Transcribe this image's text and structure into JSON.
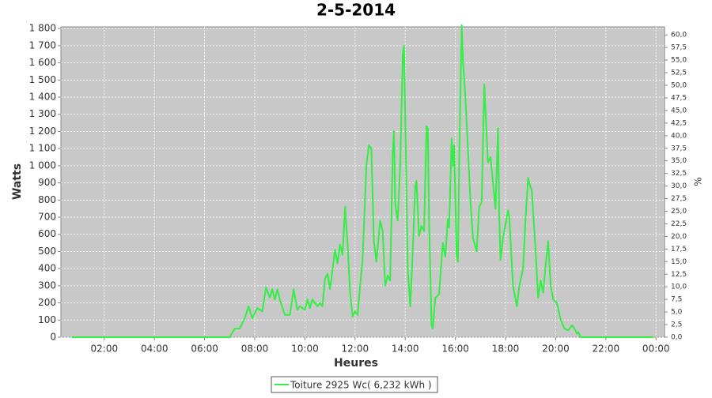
{
  "chart_data": {
    "type": "line",
    "title": "2-5-2014",
    "xlabel": "Heures",
    "ylabel": "Watts",
    "y2label": "%",
    "x": [
      0.7,
      6.0,
      7.0,
      7.2,
      7.4,
      7.6,
      7.75,
      7.9,
      8.1,
      8.3,
      8.45,
      8.6,
      8.7,
      8.8,
      8.9,
      9.0,
      9.2,
      9.4,
      9.55,
      9.7,
      9.8,
      10.0,
      10.1,
      10.2,
      10.3,
      10.5,
      10.6,
      10.7,
      10.8,
      10.9,
      11.0,
      11.2,
      11.3,
      11.4,
      11.5,
      11.6,
      11.7,
      11.8,
      11.9,
      12.0,
      12.1,
      12.2,
      12.3,
      12.45,
      12.55,
      12.65,
      12.75,
      12.85,
      13.0,
      13.1,
      13.2,
      13.3,
      13.4,
      13.5,
      13.55,
      13.6,
      13.7,
      13.8,
      13.9,
      13.95,
      14.0,
      14.1,
      14.2,
      14.3,
      14.4,
      14.45,
      14.55,
      14.65,
      14.75,
      14.85,
      14.9,
      14.95,
      15.05,
      15.1,
      15.2,
      15.35,
      15.5,
      15.6,
      15.7,
      15.75,
      15.85,
      15.9,
      15.95,
      16.0,
      16.05,
      16.1,
      16.15,
      16.25,
      16.3,
      16.4,
      16.6,
      16.7,
      16.85,
      16.95,
      17.05,
      17.15,
      17.3,
      17.4,
      17.5,
      17.6,
      17.7,
      17.75,
      17.8,
      17.9,
      18.0,
      18.1,
      18.15,
      18.3,
      18.45,
      18.55,
      18.7,
      18.8,
      18.9,
      18.95,
      19.05,
      19.2,
      19.3,
      19.4,
      19.5,
      19.6,
      19.7,
      19.8,
      19.9,
      20.05,
      20.2,
      20.35,
      20.5,
      20.65,
      20.75,
      20.85,
      20.9,
      21.0,
      23.9
    ],
    "series": [
      {
        "name": "Toiture 2925 Wc( 6,232 kWh )",
        "color": "#33ee44",
        "values": [
          0,
          0,
          0,
          50,
          50,
          110,
          180,
          110,
          170,
          150,
          290,
          230,
          280,
          220,
          280,
          220,
          130,
          130,
          280,
          160,
          180,
          160,
          220,
          170,
          220,
          180,
          200,
          180,
          340,
          370,
          280,
          510,
          430,
          540,
          480,
          760,
          550,
          260,
          120,
          150,
          130,
          300,
          450,
          1000,
          1120,
          1100,
          560,
          440,
          680,
          620,
          300,
          360,
          330,
          1070,
          1200,
          780,
          680,
          1000,
          1650,
          1700,
          1300,
          400,
          180,
          500,
          880,
          910,
          590,
          650,
          620,
          1230,
          1220,
          700,
          70,
          50,
          230,
          250,
          550,
          470,
          690,
          640,
          1160,
          1000,
          1120,
          800,
          480,
          440,
          1000,
          1820,
          1620,
          1400,
          800,
          580,
          500,
          760,
          790,
          1475,
          1020,
          1050,
          900,
          750,
          1220,
          700,
          450,
          580,
          660,
          740,
          700,
          300,
          180,
          300,
          400,
          700,
          930,
          900,
          850,
          500,
          230,
          330,
          260,
          420,
          560,
          300,
          220,
          200,
          100,
          50,
          40,
          70,
          50,
          20,
          30,
          0,
          0
        ]
      }
    ],
    "xlim": [
      0.27,
      24.34
    ],
    "xticks": [
      {
        "value": 2,
        "label": "02:00"
      },
      {
        "value": 4,
        "label": "04:00"
      },
      {
        "value": 6,
        "label": "06:00"
      },
      {
        "value": 8,
        "label": "08:00"
      },
      {
        "value": 10,
        "label": "10:00"
      },
      {
        "value": 12,
        "label": "12:00"
      },
      {
        "value": 14,
        "label": "14:00"
      },
      {
        "value": 16,
        "label": "16:00"
      },
      {
        "value": 18,
        "label": "18:00"
      },
      {
        "value": 20,
        "label": "20:00"
      },
      {
        "value": 22,
        "label": "22:00"
      },
      {
        "value": 24,
        "label": "00:00"
      }
    ],
    "ylim": [
      0,
      1810
    ],
    "yticks": [
      0,
      100,
      200,
      300,
      400,
      500,
      600,
      700,
      800,
      900,
      {
        "value": 1000,
        "label": "1 000"
      },
      {
        "value": 1100,
        "label": "1 100"
      },
      {
        "value": 1200,
        "label": "1 200"
      },
      {
        "value": 1300,
        "label": "1 300"
      },
      {
        "value": 1400,
        "label": "1 400"
      },
      {
        "value": 1500,
        "label": "1 500"
      },
      {
        "value": 1600,
        "label": "1 600"
      },
      {
        "value": 1700,
        "label": "1 700"
      },
      {
        "value": 1800,
        "label": "1 800"
      }
    ],
    "y2lim": [
      0,
      61.6
    ],
    "y2ticks": [
      {
        "value": 0,
        "label": "0,0"
      },
      {
        "value": 2.5,
        "label": "2,5"
      },
      {
        "value": 5,
        "label": "5,0"
      },
      {
        "value": 7.5,
        "label": "7,5"
      },
      {
        "value": 10,
        "label": "10,0"
      },
      {
        "value": 12.5,
        "label": "12,5"
      },
      {
        "value": 15,
        "label": "15,0"
      },
      {
        "value": 17.5,
        "label": "17,5"
      },
      {
        "value": 20,
        "label": "20,0"
      },
      {
        "value": 22.5,
        "label": "22,5"
      },
      {
        "value": 25,
        "label": "25,0"
      },
      {
        "value": 27.5,
        "label": "27,5"
      },
      {
        "value": 30,
        "label": "30,0"
      },
      {
        "value": 32.5,
        "label": "32,5"
      },
      {
        "value": 35,
        "label": "35,0"
      },
      {
        "value": 37.5,
        "label": "37,5"
      },
      {
        "value": 40,
        "label": "40,0"
      },
      {
        "value": 42.5,
        "label": "42,5"
      },
      {
        "value": 45,
        "label": "45,0"
      },
      {
        "value": 47.5,
        "label": "47,5"
      },
      {
        "value": 50,
        "label": "50,0"
      },
      {
        "value": 52.5,
        "label": "52,5"
      },
      {
        "value": 55,
        "label": "55,0"
      },
      {
        "value": 57.5,
        "label": "57,5"
      },
      {
        "value": 60,
        "label": "60,0"
      }
    ],
    "grid": true
  }
}
